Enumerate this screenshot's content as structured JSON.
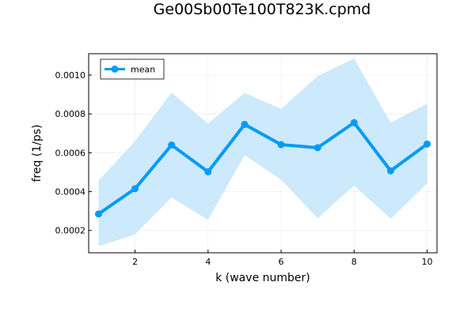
{
  "chart_data": {
    "type": "line",
    "title": "Ge00Sb00Te100T823K.cpmd",
    "xlabel": "k (wave number)",
    "ylabel": "freq (1/ps)",
    "x": [
      1,
      2,
      3,
      4,
      5,
      6,
      7,
      8,
      9,
      10
    ],
    "xticks": [
      2,
      4,
      6,
      8,
      10
    ],
    "xtick_labels": [
      "2",
      "4",
      "6",
      "8",
      "10"
    ],
    "yticks": [
      0.0002,
      0.0004,
      0.0006,
      0.0008,
      0.001
    ],
    "ytick_labels": [
      "0.0002",
      "0.0004",
      "0.0006",
      "0.0008",
      "0.0010"
    ],
    "xlim": [
      0.73,
      10.27
    ],
    "ylim": [
      8.5e-05,
      0.00111
    ],
    "grid": true,
    "legend_position": "top-left",
    "series": [
      {
        "name": "mean",
        "color": "#009af9",
        "values": [
          0.000285,
          0.000415,
          0.00064,
          0.000502,
          0.000746,
          0.000642,
          0.000626,
          0.000755,
          0.000507,
          0.000645
        ],
        "band_lower": [
          0.000118,
          0.00018,
          0.00037,
          0.000255,
          0.000588,
          0.000462,
          0.000262,
          0.000432,
          0.00026,
          0.000442
        ],
        "band_upper": [
          0.000457,
          0.00066,
          0.00091,
          0.00075,
          0.000908,
          0.000826,
          0.000995,
          0.001085,
          0.000755,
          0.000853
        ],
        "band_color": "#cde9fc"
      }
    ]
  }
}
